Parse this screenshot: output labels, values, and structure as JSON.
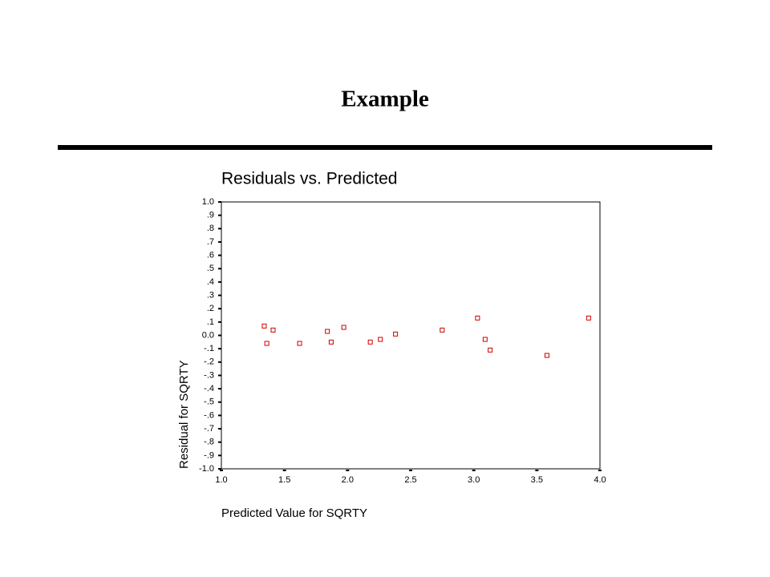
{
  "title": "Example",
  "chart_data": {
    "type": "scatter",
    "title": "Residuals vs. Predicted",
    "x_label": "Predicted Value for SQRTY",
    "y_label": "Residual for SQRTY",
    "x": [
      1.34,
      1.36,
      1.41,
      1.62,
      1.84,
      1.87,
      1.97,
      2.18,
      2.26,
      2.38,
      2.75,
      3.03,
      3.09,
      3.13,
      3.58,
      3.91
    ],
    "series": [
      {
        "color": "#cc0000",
        "values": [
          0.07,
          -0.06,
          0.04,
          -0.06,
          0.03,
          -0.05,
          0.06,
          -0.05,
          -0.03,
          0.01,
          0.04,
          0.13,
          -0.03,
          -0.11,
          -0.15,
          0.13
        ]
      }
    ],
    "xlim": [
      1.0,
      4.0
    ],
    "ylim": [
      -1.0,
      1.0
    ],
    "xticks": [
      {
        "value": 1.0,
        "label": "1.0"
      },
      1.5,
      {
        "value": 2.0,
        "label": "2.0"
      },
      2.5,
      {
        "value": 3.0,
        "label": "3.0"
      },
      3.5,
      {
        "value": 4.0,
        "label": "4.0"
      }
    ],
    "yticks": [
      {
        "value": 1.0,
        "label": "1.0"
      },
      {
        "value": 0.9,
        "label": ".9"
      },
      {
        "value": 0.8,
        "label": ".8"
      },
      {
        "value": 0.7,
        "label": ".7"
      },
      {
        "value": 0.6,
        "label": ".6"
      },
      {
        "value": 0.5,
        "label": ".5"
      },
      {
        "value": 0.4,
        "label": ".4"
      },
      {
        "value": 0.3,
        "label": ".3"
      },
      {
        "value": 0.2,
        "label": ".2"
      },
      {
        "value": 0.1,
        "label": ".1"
      },
      {
        "value": 0.0,
        "label": "0.0"
      },
      {
        "value": -0.1,
        "label": "-.1"
      },
      {
        "value": -0.2,
        "label": "-.2"
      },
      {
        "value": -0.3,
        "label": "-.3"
      },
      {
        "value": -0.4,
        "label": "-.4"
      },
      {
        "value": -0.5,
        "label": "-.5"
      },
      {
        "value": -0.6,
        "label": "-.6"
      },
      {
        "value": -0.7,
        "label": "-.7"
      },
      {
        "value": -0.8,
        "label": "-.8"
      },
      {
        "value": -0.9,
        "label": "-.9"
      },
      {
        "value": -1.0,
        "label": "-1.0"
      }
    ],
    "grid": false
  }
}
